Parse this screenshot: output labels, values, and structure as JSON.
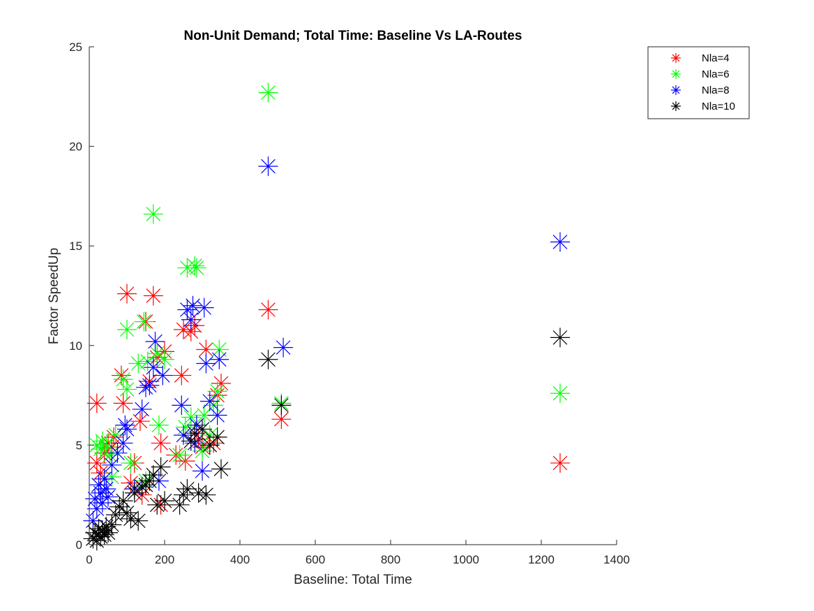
{
  "chart_data": {
    "type": "scatter",
    "title": "Non-Unit Demand; Total Time: Baseline Vs LA-Routes",
    "xlabel": "Baseline:  Total Time",
    "ylabel": "Factor SpeedUp",
    "xlim": [
      0,
      1400
    ],
    "ylim": [
      0,
      25
    ],
    "xticks": [
      0,
      200,
      400,
      600,
      800,
      1000,
      1200,
      1400
    ],
    "yticks": [
      0,
      5,
      10,
      15,
      20,
      25
    ],
    "grid": false,
    "legend_position": "top-right",
    "marker": "asterisk",
    "series": [
      {
        "name": "Nla=4",
        "color": "#ff0000",
        "points": [
          [
            20,
            7.1
          ],
          [
            20,
            4.1
          ],
          [
            30,
            3.6
          ],
          [
            40,
            4.6
          ],
          [
            50,
            5.1
          ],
          [
            65,
            5.4
          ],
          [
            85,
            8.5
          ],
          [
            90,
            7.1
          ],
          [
            100,
            12.6
          ],
          [
            110,
            3.1
          ],
          [
            120,
            4.1
          ],
          [
            135,
            6.2
          ],
          [
            150,
            11.2
          ],
          [
            160,
            8.2
          ],
          [
            170,
            12.5
          ],
          [
            180,
            9.4
          ],
          [
            190,
            5.1
          ],
          [
            200,
            9.7
          ],
          [
            190,
            2.0
          ],
          [
            245,
            8.5
          ],
          [
            250,
            10.8
          ],
          [
            270,
            10.7
          ],
          [
            280,
            11.0
          ],
          [
            255,
            4.2
          ],
          [
            290,
            5.3
          ],
          [
            300,
            4.9
          ],
          [
            310,
            9.8
          ],
          [
            330,
            5.1
          ],
          [
            340,
            7.5
          ],
          [
            350,
            8.1
          ],
          [
            475,
            11.8
          ],
          [
            510,
            6.3
          ],
          [
            1250,
            4.1
          ],
          [
            60,
            4.9
          ],
          [
            140,
            2.5
          ],
          [
            230,
            4.5
          ]
        ]
      },
      {
        "name": "Nla=6",
        "color": "#00ff00",
        "points": [
          [
            20,
            5.0
          ],
          [
            25,
            3.0
          ],
          [
            30,
            4.8
          ],
          [
            35,
            5.2
          ],
          [
            45,
            4.9
          ],
          [
            55,
            4.5
          ],
          [
            70,
            5.5
          ],
          [
            90,
            8.3
          ],
          [
            100,
            7.8
          ],
          [
            100,
            10.8
          ],
          [
            110,
            4.1
          ],
          [
            130,
            9.1
          ],
          [
            145,
            11.2
          ],
          [
            155,
            9.2
          ],
          [
            170,
            16.6
          ],
          [
            180,
            9.6
          ],
          [
            185,
            6.0
          ],
          [
            200,
            9.3
          ],
          [
            240,
            4.5
          ],
          [
            255,
            5.9
          ],
          [
            260,
            13.9
          ],
          [
            270,
            6.4
          ],
          [
            280,
            14.0
          ],
          [
            285,
            13.9
          ],
          [
            300,
            4.7
          ],
          [
            305,
            6.5
          ],
          [
            320,
            5.5
          ],
          [
            330,
            7.0
          ],
          [
            340,
            7.7
          ],
          [
            345,
            9.8
          ],
          [
            475,
            22.7
          ],
          [
            510,
            7.1
          ],
          [
            1250,
            7.6
          ],
          [
            60,
            3.4
          ],
          [
            120,
            2.8
          ],
          [
            150,
            3.2
          ]
        ]
      },
      {
        "name": "Nla=8",
        "color": "#0000ff",
        "points": [
          [
            10,
            1.2
          ],
          [
            15,
            2.3
          ],
          [
            20,
            1.8
          ],
          [
            25,
            3.0
          ],
          [
            30,
            2.6
          ],
          [
            35,
            2.1
          ],
          [
            40,
            3.3
          ],
          [
            45,
            2.8
          ],
          [
            50,
            2.4
          ],
          [
            60,
            4.0
          ],
          [
            75,
            4.6
          ],
          [
            90,
            5.1
          ],
          [
            95,
            6.0
          ],
          [
            100,
            5.8
          ],
          [
            120,
            2.8
          ],
          [
            140,
            6.8
          ],
          [
            150,
            7.9
          ],
          [
            160,
            8.0
          ],
          [
            170,
            8.9
          ],
          [
            175,
            10.2
          ],
          [
            185,
            3.2
          ],
          [
            195,
            8.5
          ],
          [
            245,
            7.0
          ],
          [
            250,
            5.5
          ],
          [
            260,
            11.8
          ],
          [
            270,
            11.3
          ],
          [
            275,
            12.0
          ],
          [
            280,
            5.1
          ],
          [
            285,
            6.0
          ],
          [
            300,
            3.7
          ],
          [
            305,
            11.9
          ],
          [
            310,
            9.1
          ],
          [
            320,
            7.2
          ],
          [
            340,
            6.5
          ],
          [
            345,
            9.3
          ],
          [
            475,
            19.0
          ],
          [
            515,
            9.9
          ],
          [
            1250,
            15.2
          ]
        ]
      },
      {
        "name": "Nla=10",
        "color": "#000000",
        "points": [
          [
            10,
            0.3
          ],
          [
            15,
            0.6
          ],
          [
            20,
            0.2
          ],
          [
            25,
            0.8
          ],
          [
            30,
            0.4
          ],
          [
            35,
            0.7
          ],
          [
            40,
            0.5
          ],
          [
            45,
            0.9
          ],
          [
            50,
            0.6
          ],
          [
            60,
            1.0
          ],
          [
            70,
            1.5
          ],
          [
            80,
            1.9
          ],
          [
            90,
            2.2
          ],
          [
            100,
            1.6
          ],
          [
            110,
            1.3
          ],
          [
            120,
            2.6
          ],
          [
            130,
            1.2
          ],
          [
            140,
            2.9
          ],
          [
            150,
            3.0
          ],
          [
            160,
            3.2
          ],
          [
            170,
            3.5
          ],
          [
            180,
            2.0
          ],
          [
            190,
            3.9
          ],
          [
            200,
            2.2
          ],
          [
            240,
            2.0
          ],
          [
            250,
            2.5
          ],
          [
            260,
            2.8
          ],
          [
            270,
            5.2
          ],
          [
            280,
            5.6
          ],
          [
            290,
            2.6
          ],
          [
            300,
            5.8
          ],
          [
            310,
            2.5
          ],
          [
            320,
            5.0
          ],
          [
            340,
            5.4
          ],
          [
            350,
            3.8
          ],
          [
            475,
            9.3
          ],
          [
            510,
            7.0
          ],
          [
            1250,
            10.4
          ]
        ]
      }
    ]
  }
}
